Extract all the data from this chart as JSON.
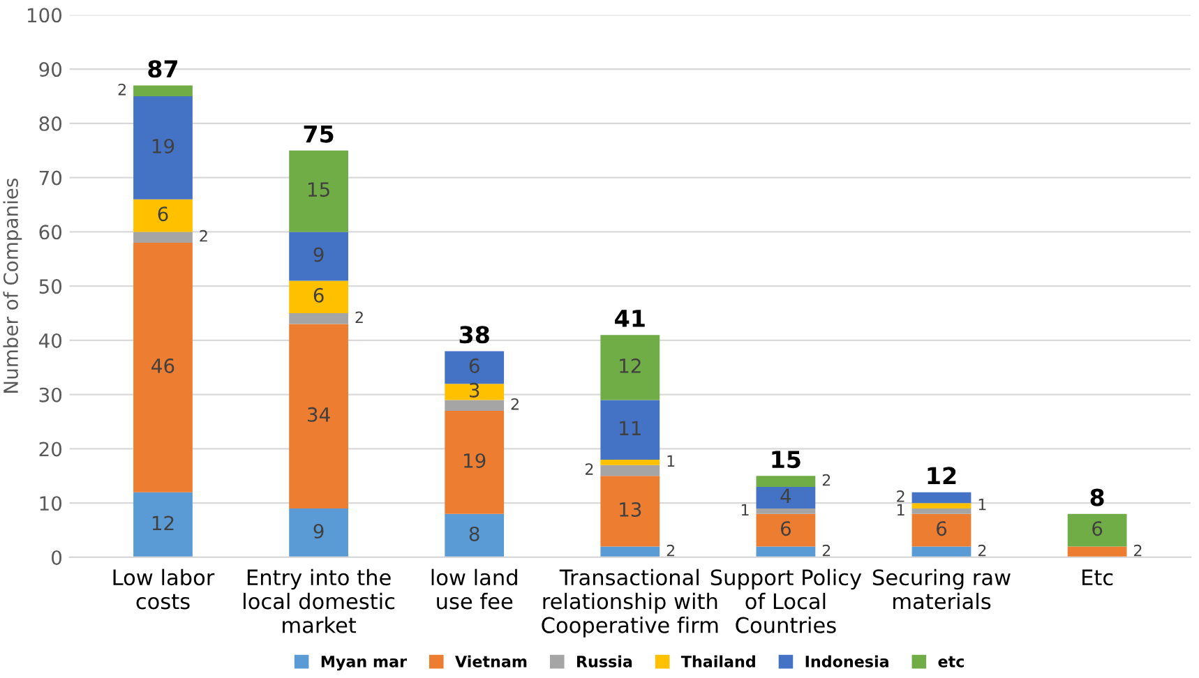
{
  "chart_data": {
    "type": "bar",
    "stacked": true,
    "ylabel": "Number of Companies",
    "categories": [
      "Low labor\ncosts",
      "Entry into the\nlocal domestic\nmarket",
      "low land\nuse fee",
      "Transactional\nrelationship with\nCooperative firm",
      "Support Policy\nof Local\nCountries",
      "Securing raw\nmaterials",
      "Etc"
    ],
    "series": [
      {
        "name": "Myan mar",
        "color": "#5b9bd5",
        "values": [
          12,
          9,
          8,
          2,
          2,
          2,
          0
        ],
        "value_labels": [
          "12",
          "9",
          "8",
          "2",
          "2",
          "2",
          null
        ]
      },
      {
        "name": "Vietnam",
        "color": "#ed7d31",
        "values": [
          46,
          34,
          19,
          13,
          6,
          6,
          2
        ],
        "value_labels": [
          "46",
          "34",
          "19",
          "13",
          "6",
          "6",
          "2"
        ]
      },
      {
        "name": "Russia",
        "color": "#a5a5a5",
        "values": [
          2,
          2,
          2,
          2,
          1,
          1,
          0
        ],
        "value_labels": [
          "2",
          "2",
          "2",
          "2",
          "1",
          "1",
          null
        ]
      },
      {
        "name": "Thailand",
        "color": "#ffc000",
        "values": [
          6,
          6,
          3,
          1,
          0,
          1,
          0
        ],
        "value_labels": [
          "6",
          "6",
          "3",
          "1",
          null,
          "1",
          null
        ]
      },
      {
        "name": "Indonesia",
        "color": "#4472c4",
        "values": [
          19,
          9,
          6,
          11,
          4,
          2,
          0
        ],
        "value_labels": [
          "19",
          "9",
          "6",
          "11",
          "4",
          "2",
          null
        ]
      },
      {
        "name": "etc",
        "color": "#70ad47",
        "values": [
          2,
          15,
          0,
          12,
          2,
          0,
          6
        ],
        "value_labels": [
          "2",
          "15",
          null,
          "12",
          "2",
          null,
          "6"
        ]
      }
    ],
    "totals": [
      "87",
      "75",
      "38",
      "41",
      "15",
      "12",
      "8"
    ],
    "ylim": [
      0,
      100
    ],
    "yticks": [
      0,
      10,
      20,
      30,
      40,
      50,
      60,
      70,
      80,
      90,
      100
    ],
    "grid": "y",
    "legend": "bottom"
  }
}
